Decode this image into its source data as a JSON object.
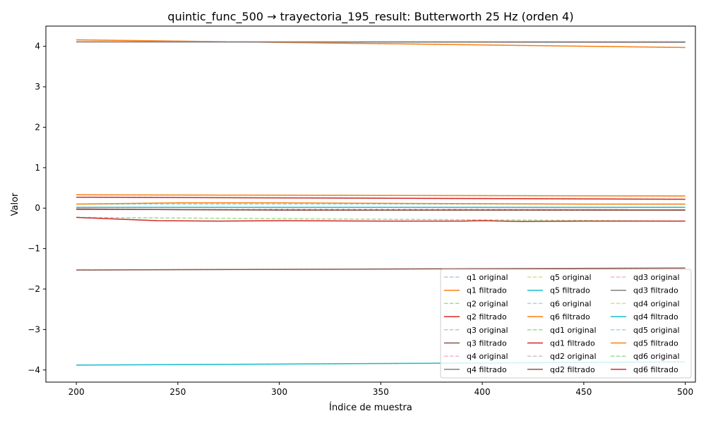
{
  "chart_data": {
    "type": "line",
    "title": "quintic_func_500 → trayectoria_195_result: Butterworth 25 Hz (orden 4)",
    "xlabel": "Índice de muestra",
    "ylabel": "Valor",
    "xlim": [
      185,
      505
    ],
    "ylim": [
      -4.3,
      4.5
    ],
    "xticks": [
      200,
      250,
      300,
      350,
      400,
      450,
      500
    ],
    "yticks": [
      -4,
      -3,
      -2,
      -1,
      0,
      1,
      2,
      3,
      4
    ],
    "ytick_labels": [
      "−4",
      "−3",
      "−2",
      "−1",
      "0",
      "1",
      "2",
      "3",
      "4"
    ],
    "grid": false,
    "legend": {
      "placement": "lower-right",
      "columns": 3
    },
    "series": [
      {
        "name": "q1 original",
        "color": "#aec7e8",
        "dashed": true,
        "x": [
          200,
          500
        ],
        "y": [
          4.16,
          3.97
        ]
      },
      {
        "name": "q1 filtrado",
        "color": "#ff7f0e",
        "dashed": false,
        "x": [
          200,
          500
        ],
        "y": [
          4.16,
          3.97
        ]
      },
      {
        "name": "q2 original",
        "color": "#98df8a",
        "dashed": true,
        "x": [
          200,
          500
        ],
        "y": [
          0.27,
          0.22
        ]
      },
      {
        "name": "q2 filtrado",
        "color": "#d62728",
        "dashed": false,
        "x": [
          200,
          500
        ],
        "y": [
          0.27,
          0.22
        ]
      },
      {
        "name": "q3 original",
        "color": "#c7c7c7",
        "dashed": true,
        "x": [
          200,
          500
        ],
        "y": [
          -1.53,
          -1.48
        ]
      },
      {
        "name": "q3 filtrado",
        "color": "#8c564b",
        "dashed": false,
        "x": [
          200,
          500
        ],
        "y": [
          -1.53,
          -1.48
        ]
      },
      {
        "name": "q4 original",
        "color": "#f7b6d2",
        "dashed": true,
        "x": [
          200,
          500
        ],
        "y": [
          4.11,
          4.11
        ]
      },
      {
        "name": "q4 filtrado",
        "color": "#7f7f7f",
        "dashed": false,
        "x": [
          200,
          500
        ],
        "y": [
          4.11,
          4.11
        ]
      },
      {
        "name": "q5 original",
        "color": "#dbdb8d",
        "dashed": true,
        "x": [
          200,
          500
        ],
        "y": [
          0.02,
          0.02
        ]
      },
      {
        "name": "q5 filtrado",
        "color": "#17becf",
        "dashed": false,
        "x": [
          200,
          500
        ],
        "y": [
          0.02,
          0.02
        ]
      },
      {
        "name": "q6 original",
        "color": "#9edae5",
        "dashed": true,
        "x": [
          200,
          500
        ],
        "y": [
          0.33,
          0.3
        ]
      },
      {
        "name": "q6 filtrado",
        "color": "#ff7f0e",
        "dashed": false,
        "x": [
          200,
          500
        ],
        "y": [
          0.33,
          0.3
        ]
      },
      {
        "name": "qd1 original",
        "color": "#98df8a",
        "dashed": true,
        "x": [
          200,
          500
        ],
        "y": [
          -0.03,
          -0.04
        ]
      },
      {
        "name": "qd1 filtrado",
        "color": "#d62728",
        "dashed": false,
        "x": [
          200,
          500
        ],
        "y": [
          -0.03,
          -0.04
        ]
      },
      {
        "name": "qd2 original",
        "color": "#c7c7c7",
        "dashed": true,
        "x": [
          200,
          500
        ],
        "y": [
          -0.02,
          -0.05
        ]
      },
      {
        "name": "qd2 filtrado",
        "color": "#8c564b",
        "dashed": false,
        "x": [
          200,
          250,
          300,
          350,
          400,
          450,
          500
        ],
        "y": [
          -0.02,
          -0.04,
          -0.05,
          -0.05,
          -0.05,
          -0.05,
          -0.05
        ]
      },
      {
        "name": "qd3 original",
        "color": "#f7b6d2",
        "dashed": true,
        "x": [
          200,
          500
        ],
        "y": [
          4.11,
          4.1
        ]
      },
      {
        "name": "qd3 filtrado",
        "color": "#7f7f7f",
        "dashed": false,
        "x": [
          200,
          500
        ],
        "y": [
          4.11,
          4.1
        ]
      },
      {
        "name": "qd4 original",
        "color": "#dbdb8d",
        "dashed": true,
        "x": [
          200,
          500
        ],
        "y": [
          -3.88,
          -3.8
        ]
      },
      {
        "name": "qd4 filtrado",
        "color": "#17becf",
        "dashed": false,
        "x": [
          200,
          500
        ],
        "y": [
          -3.88,
          -3.8
        ]
      },
      {
        "name": "qd5 original",
        "color": "#9edae5",
        "dashed": true,
        "x": [
          200,
          500
        ],
        "y": [
          0.1,
          0.1
        ]
      },
      {
        "name": "qd5 filtrado",
        "color": "#ff7f0e",
        "dashed": false,
        "x": [
          200,
          250,
          300,
          350,
          400,
          450,
          500
        ],
        "y": [
          0.1,
          0.13,
          0.13,
          0.12,
          0.11,
          0.1,
          0.1
        ]
      },
      {
        "name": "qd6 original",
        "color": "#98df8a",
        "dashed": true,
        "x": [
          200,
          500
        ],
        "y": [
          -0.23,
          -0.32
        ]
      },
      {
        "name": "qd6 filtrado",
        "color": "#d62728",
        "dashed": false,
        "x": [
          200,
          220,
          240,
          270,
          300,
          350,
          390,
          400,
          420,
          450,
          500
        ],
        "y": [
          -0.23,
          -0.27,
          -0.31,
          -0.32,
          -0.31,
          -0.32,
          -0.32,
          -0.31,
          -0.33,
          -0.32,
          -0.32
        ]
      }
    ]
  }
}
